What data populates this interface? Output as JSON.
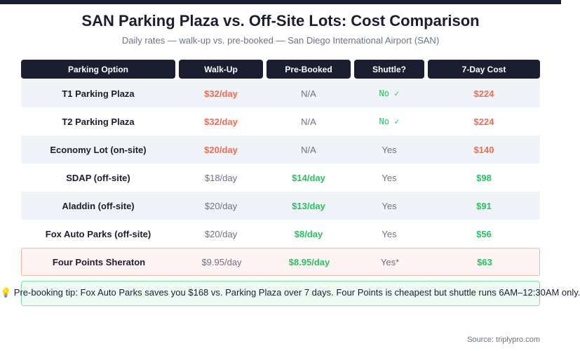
{
  "title": "SAN Parking Plaza vs. Off-Site Lots: Cost Comparison",
  "subtitle": "Daily rates — walk-up vs. pre-booked — San Diego International Airport (SAN)",
  "headers": [
    "Parking Option",
    "Walk-Up",
    "Pre-Booked",
    "Shuttle?",
    "7-Day Cost"
  ],
  "rows": [
    {
      "option": "T1 Parking Plaza",
      "walkup": "$32/day",
      "prebooked": "N/A",
      "shuttle": "No ✓",
      "cost": "$224"
    },
    {
      "option": "T2 Parking Plaza",
      "walkup": "$32/day",
      "prebooked": "N/A",
      "shuttle": "No ✓",
      "cost": "$224"
    },
    {
      "option": "Economy Lot (on-site)",
      "walkup": "$20/day",
      "prebooked": "N/A",
      "shuttle": "Yes",
      "cost": "$140"
    },
    {
      "option": "SDAP (off-site)",
      "walkup": "$18/day",
      "prebooked": "$14/day",
      "shuttle": "Yes",
      "cost": "$98"
    },
    {
      "option": "Aladdin (off-site)",
      "walkup": "$20/day",
      "prebooked": "$13/day",
      "shuttle": "Yes",
      "cost": "$91"
    },
    {
      "option": "Fox Auto Parks (off-site)",
      "walkup": "$20/day",
      "prebooked": "$8/day",
      "shuttle": "Yes",
      "cost": "$56"
    },
    {
      "option": "Four Points Sheraton",
      "walkup": "$9.95/day",
      "prebooked": "$8.95/day",
      "shuttle": "Yes*",
      "cost": "$63"
    }
  ],
  "tip": "💡 Pre-booking tip: Fox Auto Parks saves you $168 vs. Parking Plaza over 7 days. Four Points is cheapest but shuttle runs 6AM–12:30AM only.",
  "source": "Source: triplypro.com",
  "colors": {
    "dark": "#1b1d30",
    "red": "#ef6a4f",
    "green": "#22c55e"
  }
}
